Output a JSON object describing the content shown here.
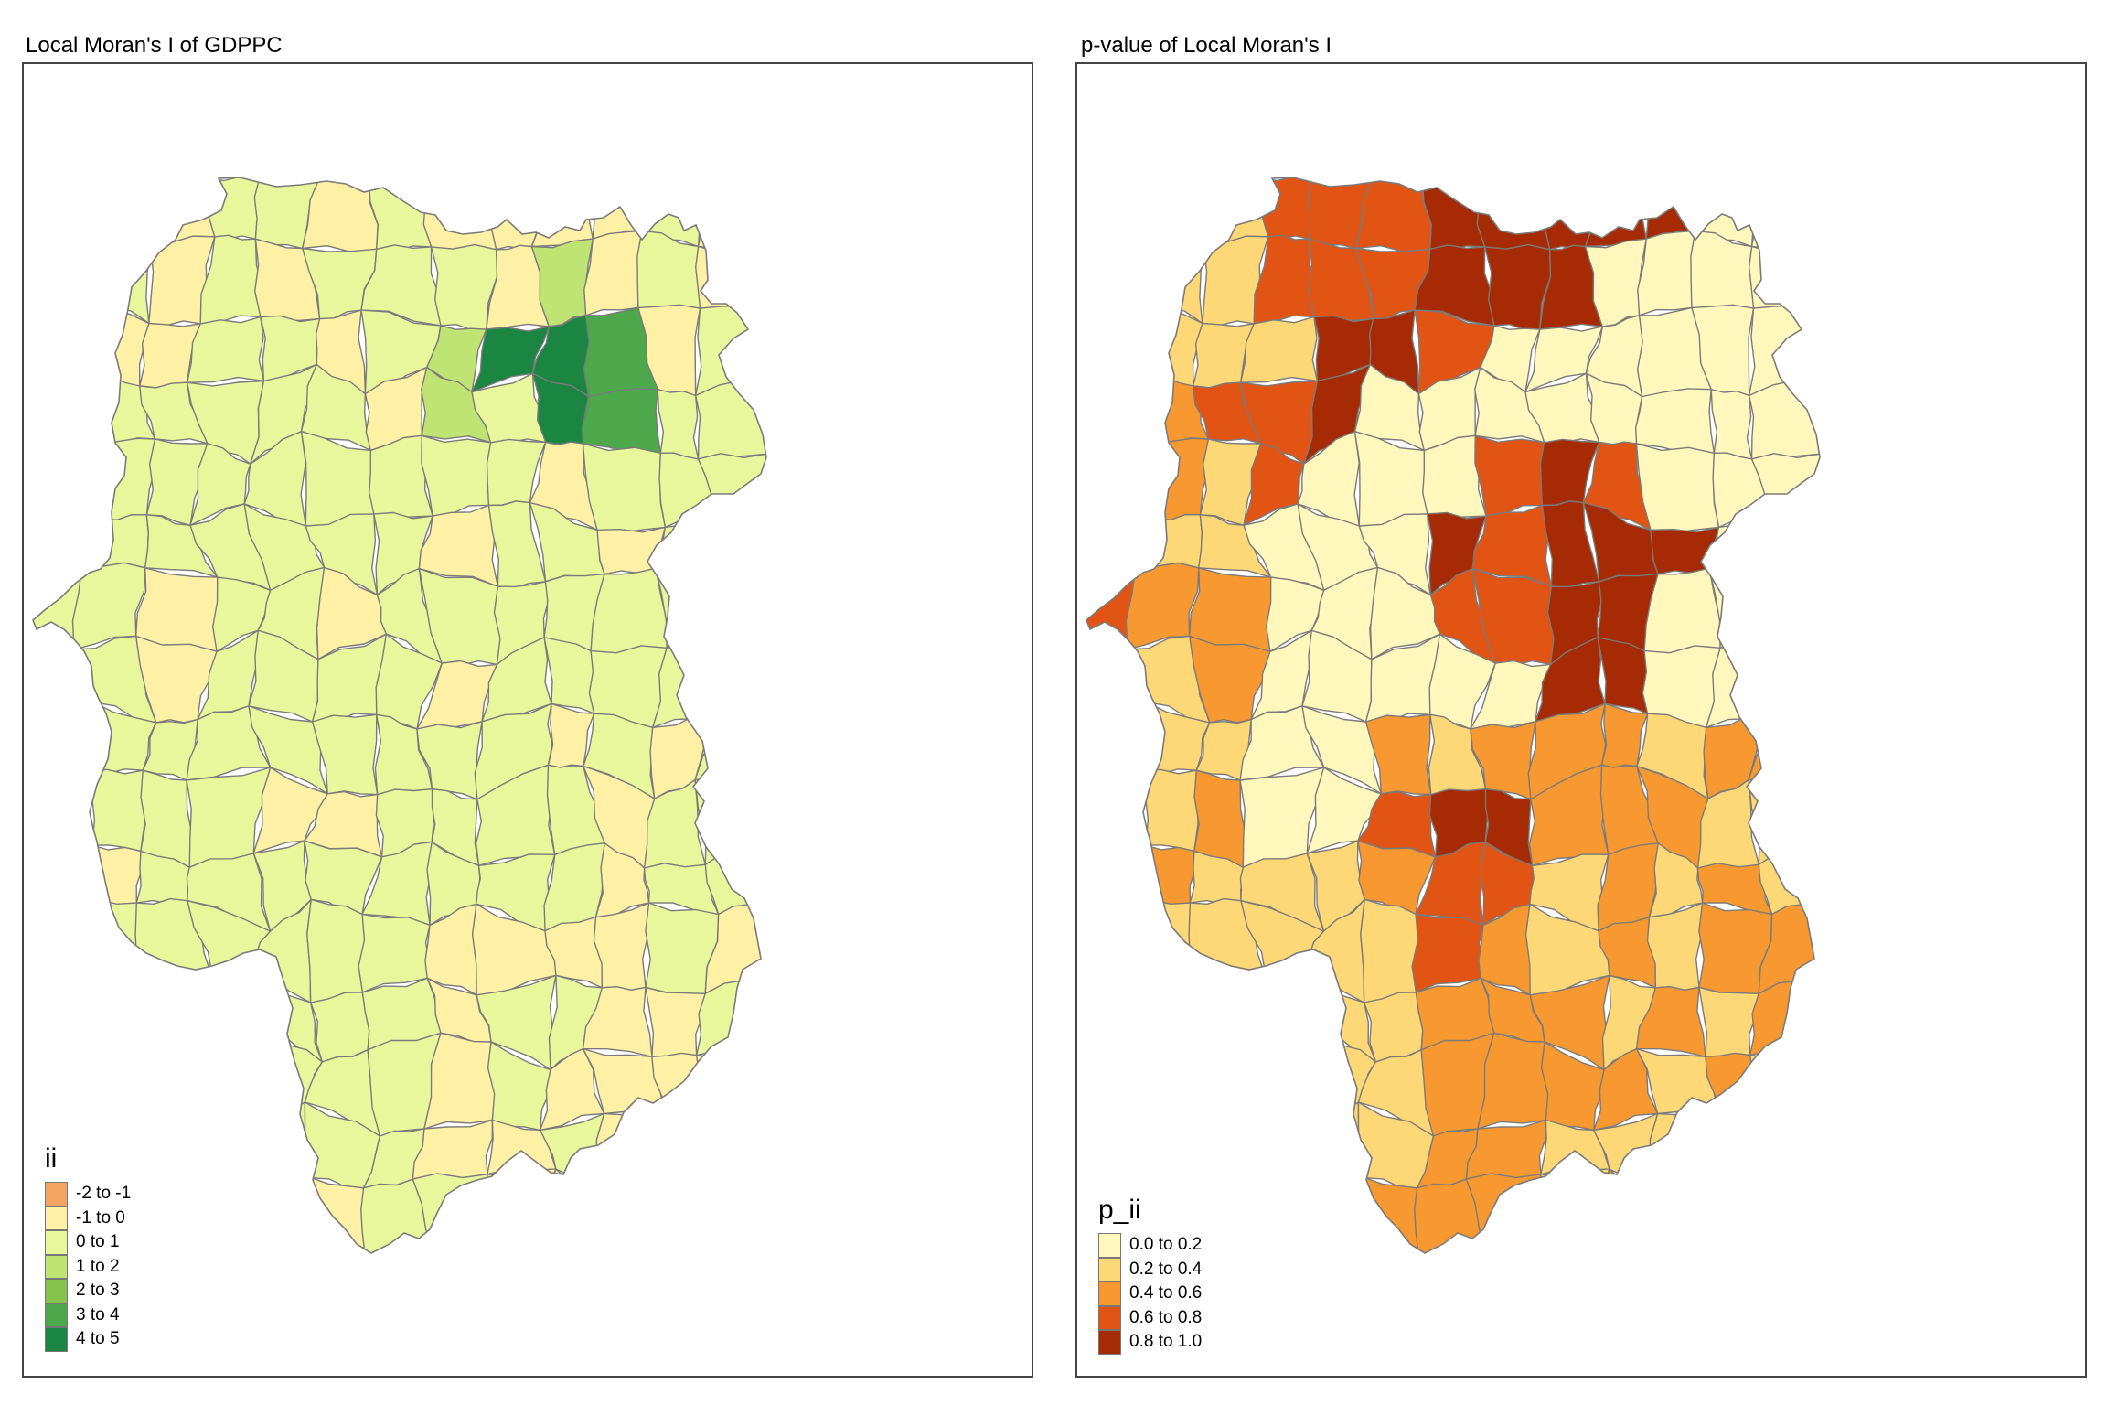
{
  "panels": [
    {
      "title": "Local Moran's I of GDPPC",
      "legend": {
        "title": "ii",
        "items": [
          {
            "label": "-2 to -1",
            "color": "#f4a460"
          },
          {
            "label": "-1 to 0",
            "color": "#fef0a5"
          },
          {
            "label": "0 to 1",
            "color": "#e9f79c"
          },
          {
            "label": "1 to 2",
            "color": "#c0e473"
          },
          {
            "label": "2 to 3",
            "color": "#86c34c"
          },
          {
            "label": "3 to 4",
            "color": "#4da84c"
          },
          {
            "label": "4 to 5",
            "color": "#1a8642"
          }
        ]
      }
    },
    {
      "title": "p-value of Local Moran's I",
      "legend": {
        "title": "p_ii",
        "items": [
          {
            "label": "0.0 to 0.2",
            "color": "#fff7bc"
          },
          {
            "label": "0.2 to 0.4",
            "color": "#fed776"
          },
          {
            "label": "0.4 to 0.6",
            "color": "#f89830"
          },
          {
            "label": "0.6 to 0.8",
            "color": "#e25414"
          },
          {
            "label": "0.8 to 1.0",
            "color": "#a62b04"
          }
        ]
      }
    }
  ]
}
